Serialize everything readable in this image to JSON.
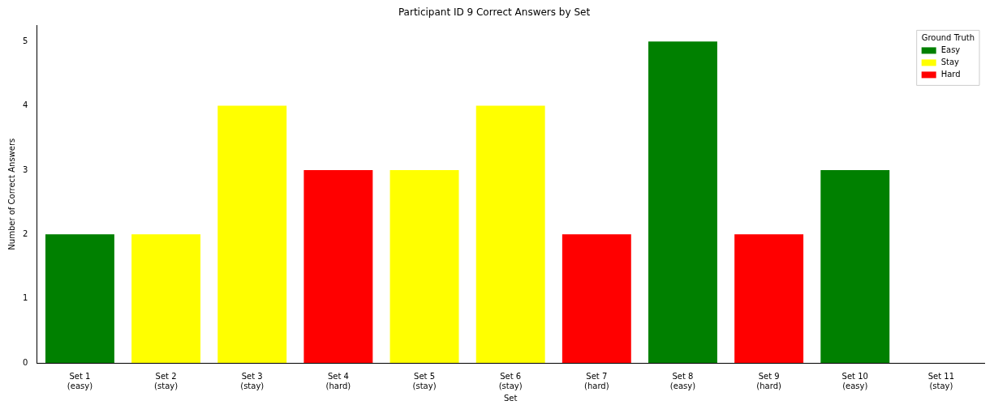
{
  "chart_data": {
    "type": "bar",
    "title": "Participant ID 9 Correct Answers by Set",
    "xlabel": "Set",
    "ylabel": "Number of Correct Answers",
    "legend_title": "Ground Truth",
    "legend": "top right",
    "grid": false,
    "categories": [
      "Set 1\n(easy)",
      "Set 2\n(stay)",
      "Set 3\n(stay)",
      "Set 4\n(hard)",
      "Set 5\n(stay)",
      "Set 6\n(stay)",
      "Set 7\n(hard)",
      "Set 8\n(easy)",
      "Set 9\n(hard)",
      "Set 10\n(easy)",
      "Set 11\n(stay)"
    ],
    "ylim": [
      0,
      5.25
    ],
    "yticks": [
      0,
      1,
      2,
      3,
      4,
      5
    ],
    "series": [
      {
        "name": "Easy",
        "color": "#008000",
        "values": [
          2,
          null,
          null,
          null,
          null,
          null,
          null,
          5,
          null,
          3,
          null
        ]
      },
      {
        "name": "Stay",
        "color": "#ffff00",
        "values": [
          null,
          2,
          4,
          null,
          3,
          4,
          null,
          null,
          null,
          null,
          0
        ]
      },
      {
        "name": "Hard",
        "color": "#ff0000",
        "values": [
          null,
          null,
          null,
          3,
          null,
          null,
          2,
          null,
          2,
          null,
          null
        ]
      }
    ]
  }
}
